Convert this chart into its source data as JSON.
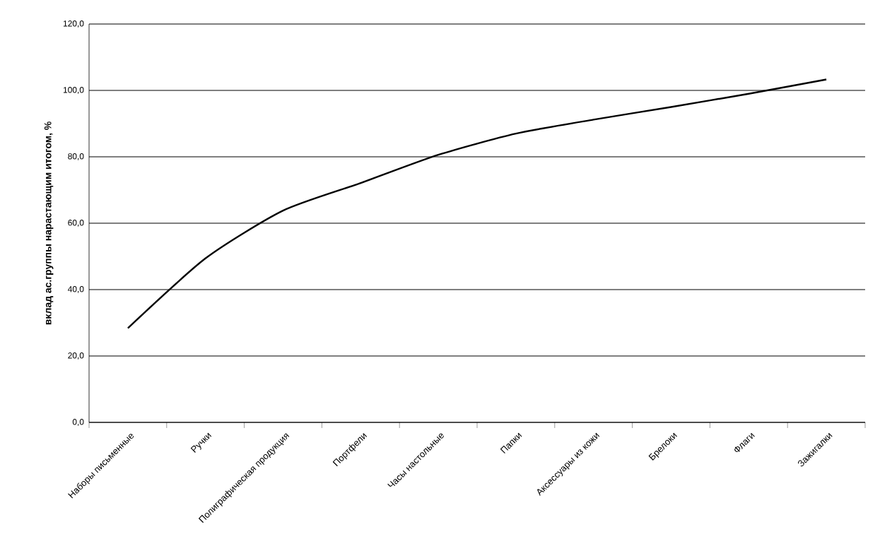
{
  "chart_data": {
    "type": "line",
    "ylabel": "вклад ас.группы нарастающим итогом, %",
    "categories": [
      "Наборы письменные",
      "Ручки",
      "Полиграфическая продукция",
      "Портфели",
      "Часы настольные",
      "Папки",
      "Аксессуары из кожи",
      "Брелоки",
      "Флаги",
      "Зажигалки"
    ],
    "series": [
      {
        "color": "#000000",
        "values": [
          28.4,
          49.4,
          63.8,
          72.1,
          80.6,
          87.0,
          91.2,
          95.0,
          99.0,
          103.3
        ]
      }
    ],
    "ylim": [
      0,
      120
    ],
    "yticks": [
      {
        "value": 0,
        "label": "0,0"
      },
      {
        "value": 20,
        "label": "20,0"
      },
      {
        "value": 40,
        "label": "40,0"
      },
      {
        "value": 60,
        "label": "60,0"
      },
      {
        "value": 80,
        "label": "80,0"
      },
      {
        "value": 100,
        "label": "100,0"
      },
      {
        "value": 120,
        "label": "120,0"
      }
    ],
    "grid": "y",
    "marker": "none",
    "line_style": "solid"
  }
}
